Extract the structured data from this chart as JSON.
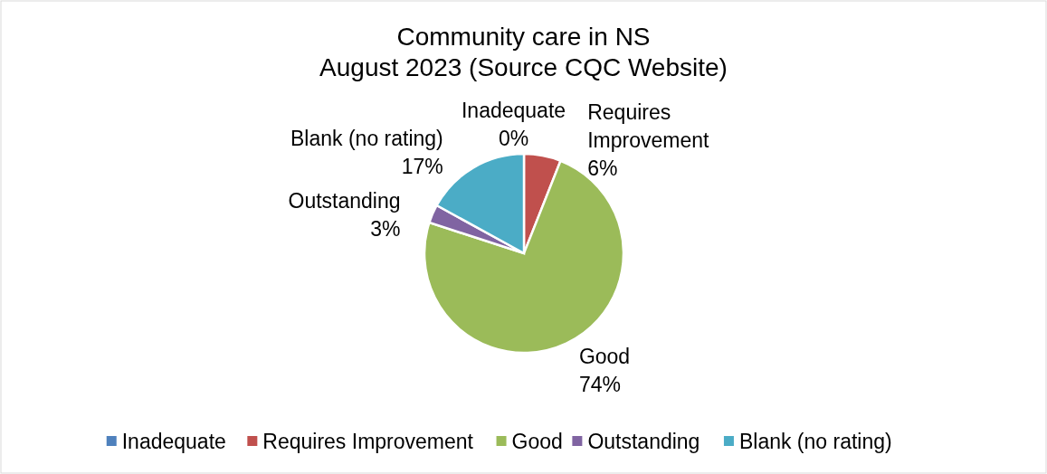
{
  "chart_data": {
    "type": "pie",
    "title": "Community care in NS\nAugust 2023 (Source CQC Website)",
    "categories": [
      "Inadequate",
      "Requires Improvement",
      "Good",
      "Outstanding",
      "Blank (no rating)"
    ],
    "values": [
      0,
      6,
      74,
      3,
      17
    ],
    "colors": [
      "#4f81bd",
      "#c0504d",
      "#9bbb59",
      "#8064a2",
      "#4bacc6"
    ],
    "value_labels": [
      "0%",
      "6%",
      "74%",
      "3%",
      "17%"
    ],
    "data_labels": true,
    "legend": "bottom"
  }
}
